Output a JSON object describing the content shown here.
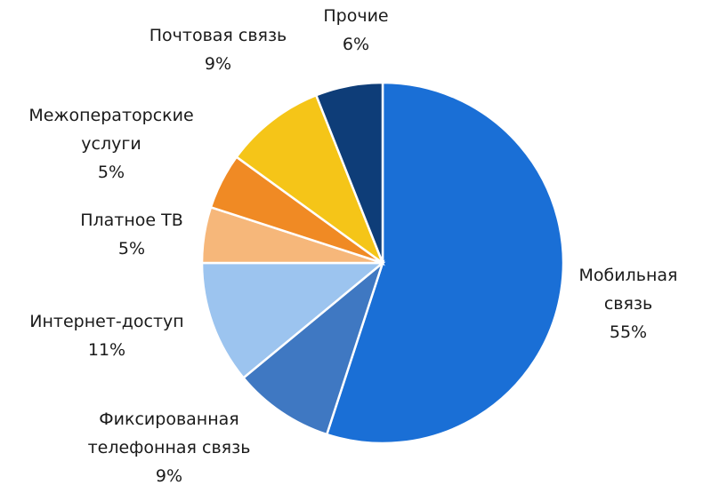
{
  "chart_data": {
    "type": "pie",
    "categories": [
      "Мобильная связь",
      "Фиксированная телефонная связь",
      "Интернет-доступ",
      "Платное ТВ",
      "Межоператорские услуги",
      "Почтовая связь",
      "Прочие"
    ],
    "values": [
      55,
      9,
      11,
      5,
      5,
      9,
      6
    ],
    "value_labels": [
      "55%",
      "9%",
      "11%",
      "5%",
      "5%",
      "9%",
      "6%"
    ],
    "colors": [
      "#1a6fd6",
      "#3f78c2",
      "#9cc4ef",
      "#f6b77a",
      "#f08a24",
      "#f5c518",
      "#0e3d78"
    ]
  }
}
